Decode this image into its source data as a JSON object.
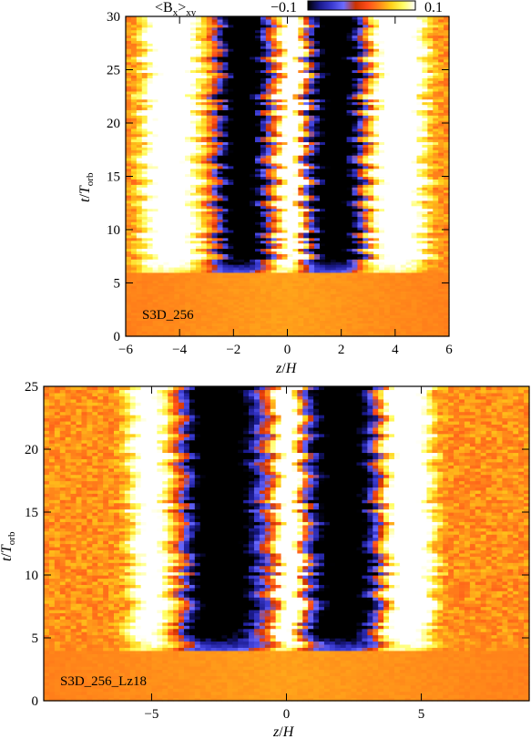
{
  "colorbar": {
    "title_main": "<B",
    "title_sub_x": "x",
    "title_close": ">",
    "title_sub_xy": "xy",
    "min_label": "−0.1",
    "max_label": "0.1",
    "min": -0.1,
    "max": 0.1,
    "colors": [
      "#000000",
      "#1a1a8c",
      "#3a3acf",
      "#6b6bff",
      "#cc3300",
      "#ff4d1a",
      "#ff8a1a",
      "#ffd21a",
      "#ffff66",
      "#ffffff"
    ]
  },
  "chart_data": [
    {
      "type": "heatmap",
      "run_label": "S3D_256",
      "xlabel_var": "z",
      "xlabel_sep": "/",
      "xlabel_den": "H",
      "ylabel_var": "t",
      "ylabel_sep": "/",
      "ylabel_den": "T",
      "ylabel_sub": "orb",
      "xlim": [
        -6,
        6
      ],
      "ylim": [
        0,
        30
      ],
      "xticks": [
        -6,
        -4,
        -2,
        0,
        2,
        4,
        6
      ],
      "xtick_labels": [
        "−6",
        "−4",
        "−2",
        "0",
        "2",
        "4",
        "6"
      ],
      "yticks": [
        0,
        5,
        10,
        15,
        20,
        25,
        30
      ],
      "ytick_labels": [
        "0",
        "5",
        "10",
        "15",
        "20",
        "25",
        "30"
      ],
      "features": {
        "onset_time": 6,
        "central_positive_band_z": [
          -0.3,
          0.6
        ],
        "negative_bands_z": [
          [
            -2.6,
            -0.7
          ],
          [
            0.8,
            2.8
          ]
        ],
        "positive_outer_bands_z": [
          [
            -5.4,
            -3.2
          ],
          [
            3.1,
            5.2
          ]
        ]
      }
    },
    {
      "type": "heatmap",
      "run_label": "S3D_256_Lz18",
      "xlabel_var": "z",
      "xlabel_sep": "/",
      "xlabel_den": "H",
      "ylabel_var": "t",
      "ylabel_sep": "/",
      "ylabel_den": "T",
      "ylabel_sub": "orb",
      "xlim": [
        -9,
        9
      ],
      "ylim": [
        0,
        25
      ],
      "xticks": [
        -5,
        0,
        5
      ],
      "xtick_labels": [
        "−5",
        "0",
        "5"
      ],
      "yticks": [
        0,
        5,
        10,
        15,
        20,
        25
      ],
      "ytick_labels": [
        "0",
        "5",
        "10",
        "15",
        "20",
        "25"
      ],
      "features": {
        "onset_time": 4,
        "central_positive_band_z": [
          -0.4,
          0.6
        ],
        "negative_bands_z": [
          [
            -4.3,
            -0.8
          ],
          [
            0.8,
            3.4
          ]
        ],
        "positive_outer_bands_z": [
          [
            -5.8,
            -3.5
          ],
          [
            3.6,
            5.5
          ]
        ]
      }
    }
  ]
}
